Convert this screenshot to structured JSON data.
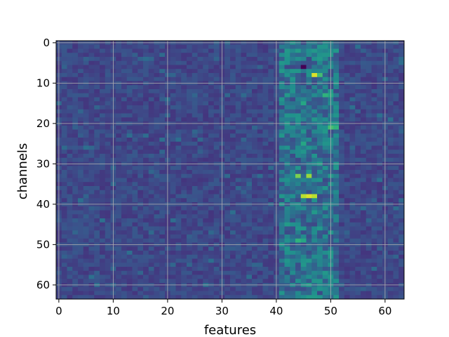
{
  "chart_data": {
    "type": "heatmap",
    "title": "",
    "xlabel": "features",
    "ylabel": "channels",
    "shape": [
      64,
      64
    ],
    "xlim": [
      -0.5,
      63.5
    ],
    "ylim": [
      63.5,
      -0.5
    ],
    "y_inverted": true,
    "xticks": [
      0,
      10,
      20,
      30,
      40,
      50,
      60
    ],
    "yticks": [
      0,
      10,
      20,
      30,
      40,
      50,
      60
    ],
    "grid": true,
    "colormap": "viridis",
    "value_range": [
      0,
      1
    ],
    "base_level": 0.22,
    "active_band": {
      "features": [
        41,
        51
      ],
      "level": 0.38
    },
    "hotspots": [
      {
        "channel": 2,
        "feature": 44,
        "value": 0.55
      },
      {
        "channel": 2,
        "feature": 46,
        "value": 0.5
      },
      {
        "channel": 6,
        "feature": 45,
        "value": 0.0
      },
      {
        "channel": 8,
        "feature": 47,
        "value": 0.95
      },
      {
        "channel": 8,
        "feature": 48,
        "value": 0.7
      },
      {
        "channel": 13,
        "feature": 49,
        "value": 0.65
      },
      {
        "channel": 13,
        "feature": 50,
        "value": 0.6
      },
      {
        "channel": 15,
        "feature": 45,
        "value": 0.6
      },
      {
        "channel": 21,
        "feature": 50,
        "value": 0.7
      },
      {
        "channel": 21,
        "feature": 51,
        "value": 0.65
      },
      {
        "channel": 25,
        "feature": 45,
        "value": 0.6
      },
      {
        "channel": 30,
        "feature": 48,
        "value": 0.55
      },
      {
        "channel": 33,
        "feature": 44,
        "value": 0.8
      },
      {
        "channel": 33,
        "feature": 46,
        "value": 0.85
      },
      {
        "channel": 38,
        "feature": 45,
        "value": 0.9
      },
      {
        "channel": 38,
        "feature": 46,
        "value": 0.95
      },
      {
        "channel": 38,
        "feature": 47,
        "value": 0.9
      },
      {
        "channel": 45,
        "feature": 42,
        "value": 0.55
      },
      {
        "channel": 49,
        "feature": 44,
        "value": 0.65
      },
      {
        "channel": 49,
        "feature": 45,
        "value": 0.6
      },
      {
        "channel": 60,
        "feature": 46,
        "value": 0.55
      },
      {
        "channel": 62,
        "feature": 47,
        "value": 0.5
      }
    ]
  }
}
